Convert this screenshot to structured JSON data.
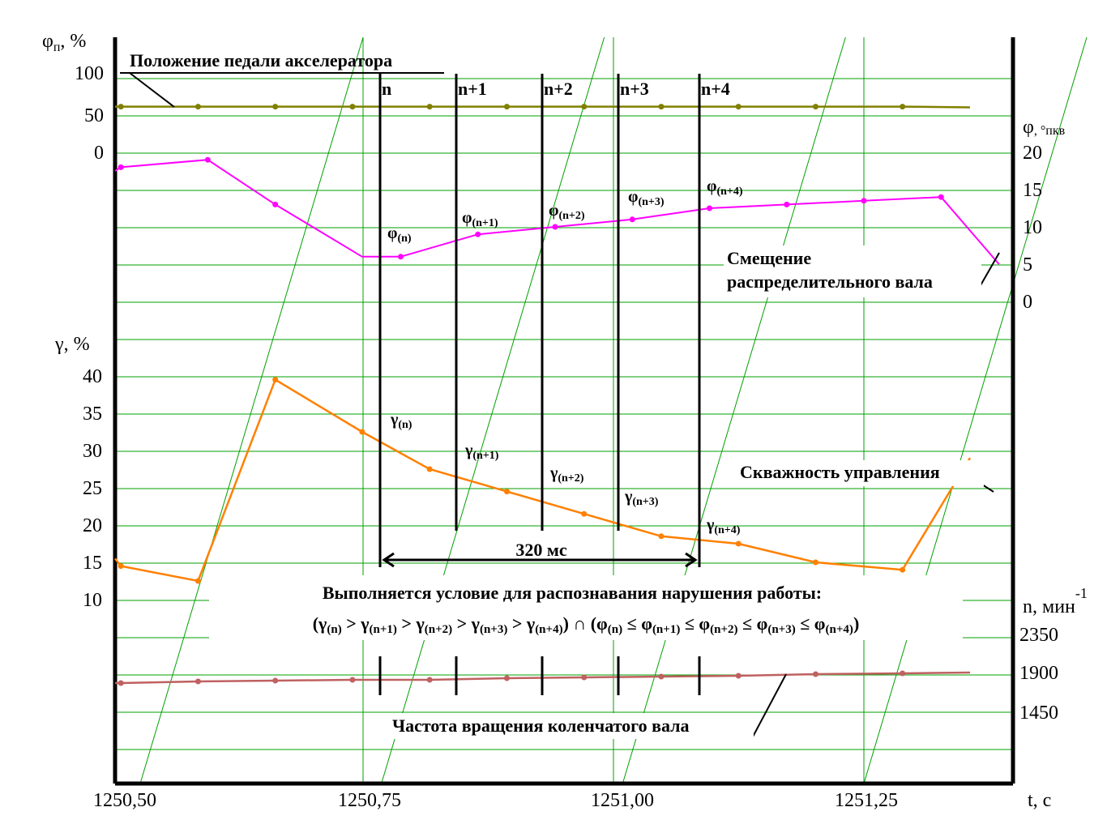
{
  "chart_data": {
    "type": "line",
    "title": "",
    "x": {
      "label": "t, с",
      "range": [
        1250.45,
        1251.4
      ],
      "ticks": [
        1250.5,
        1250.75,
        1251.0,
        1251.25
      ],
      "tick_labels": [
        "1250,50",
        "1250,75",
        "1251,00",
        "1251,25"
      ],
      "grid": [
        1250.5,
        1250.75,
        1251.0,
        1251.25
      ]
    },
    "panels": {
      "pedal": {
        "axis_label_main": "φ",
        "axis_label_sub": "п",
        "axis_label_tail": ", %",
        "ticks": [
          0,
          50,
          100
        ],
        "tick_labels": [
          "0",
          "50",
          "100"
        ]
      },
      "cam": {
        "axis_label_main": "φ",
        "axis_label_unit": ", °пкв",
        "ticks": [
          0,
          5,
          10,
          15,
          20
        ],
        "tick_labels": [
          "0",
          "5",
          "10",
          "15",
          "20"
        ]
      },
      "duty": {
        "axis_label": "γ, %",
        "ticks": [
          10,
          15,
          20,
          25,
          30,
          35,
          40
        ],
        "tick_labels": [
          "10",
          "15",
          "20",
          "25",
          "30",
          "35",
          "40"
        ]
      },
      "rpm": {
        "axis_label": "n, мин",
        "axis_label_sup": "-1",
        "ticks": [
          1450,
          1900,
          2350
        ],
        "tick_labels": [
          "1450",
          "1900",
          "2350"
        ]
      }
    },
    "series": [
      {
        "name": "Положение педали акселератора",
        "color": "#808000",
        "panel": "pedal",
        "x": [
          1250.45,
          1250.48,
          1250.56,
          1250.64,
          1250.72,
          1250.8,
          1250.88,
          1250.96,
          1251.04,
          1251.12,
          1251.2,
          1251.29,
          1251.36
        ],
        "y": [
          60,
          60,
          60,
          60,
          60,
          60,
          60,
          60,
          60,
          60,
          60,
          60,
          59
        ],
        "markers": [
          1,
          2,
          3,
          4,
          5,
          6,
          7,
          8,
          9,
          10,
          11
        ]
      },
      {
        "name": "Смещение распределительного вала",
        "color": "#ff00ff",
        "panel": "cam",
        "x": [
          1250.45,
          1250.48,
          1250.57,
          1250.64,
          1250.73,
          1250.77,
          1250.85,
          1250.93,
          1251.01,
          1251.09,
          1251.17,
          1251.25,
          1251.33,
          1251.39
        ],
        "y": [
          17.5,
          18,
          19,
          13,
          6,
          6,
          9,
          10,
          11,
          12.5,
          13,
          13.5,
          14,
          5
        ],
        "markers": [
          1,
          2,
          3,
          5,
          6,
          7,
          8,
          9,
          10,
          11,
          12
        ]
      },
      {
        "name": "Скважность управления",
        "color": "#ff8000",
        "panel": "duty",
        "x": [
          1250.45,
          1250.48,
          1250.56,
          1250.64,
          1250.73,
          1250.8,
          1250.88,
          1250.96,
          1251.04,
          1251.12,
          1251.2,
          1251.29,
          1251.36
        ],
        "y": [
          15.5,
          14.5,
          12.5,
          39.5,
          32.5,
          27.5,
          24.5,
          21.5,
          18.5,
          17.5,
          15,
          14,
          29
        ],
        "markers": [
          1,
          2,
          3,
          4,
          5,
          6,
          7,
          8,
          9,
          10,
          11
        ]
      },
      {
        "name": "Частота вращения коленчатого вала",
        "color": "#c06060",
        "panel": "rpm",
        "x": [
          1250.45,
          1250.48,
          1250.56,
          1250.64,
          1250.72,
          1250.8,
          1250.88,
          1250.96,
          1251.04,
          1251.12,
          1251.2,
          1251.29,
          1251.36
        ],
        "y": [
          1770,
          1770,
          1790,
          1800,
          1810,
          1810,
          1830,
          1840,
          1850,
          1860,
          1880,
          1890,
          1900
        ],
        "markers": [
          1,
          2,
          3,
          4,
          5,
          6,
          7,
          8,
          9,
          10,
          11
        ]
      }
    ],
    "cycle_markers": {
      "labels": [
        "n",
        "n+1",
        "n+2",
        "n+3",
        "n+4"
      ],
      "x": [
        1250.77,
        1250.85,
        1250.93,
        1251.01,
        1251.09
      ]
    },
    "annotations": {
      "phi_labels": [
        {
          "base": "φ",
          "sub": "(n)"
        },
        {
          "base": "φ",
          "sub": "(n+1)"
        },
        {
          "base": "φ",
          "sub": "(n+2)"
        },
        {
          "base": "φ",
          "sub": "(n+3)"
        },
        {
          "base": "φ",
          "sub": "(n+4)"
        }
      ],
      "gamma_labels": [
        {
          "base": "γ",
          "sub": "(n)"
        },
        {
          "base": "γ",
          "sub": "(n+1)"
        },
        {
          "base": "γ",
          "sub": "(n+2)"
        },
        {
          "base": "γ",
          "sub": "(n+3)"
        },
        {
          "base": "γ",
          "sub": "(n+4)"
        }
      ],
      "interval_label": "320 мс",
      "condition_title": "Выполняется условие для распознавания нарушения работы:",
      "condition_parts": [
        {
          "t": "(γ",
          "s": false
        },
        {
          "t": "(n)",
          "s": true
        },
        {
          "t": " > γ",
          "s": false
        },
        {
          "t": "(n+1)",
          "s": true
        },
        {
          "t": " > γ",
          "s": false
        },
        {
          "t": "(n+2)",
          "s": true
        },
        {
          "t": " > γ",
          "s": false
        },
        {
          "t": "(n+3)",
          "s": true
        },
        {
          "t": " > γ",
          "s": false
        },
        {
          "t": "(n+4)",
          "s": true
        },
        {
          "t": ") ∩ (φ",
          "s": false
        },
        {
          "t": "(n)",
          "s": true
        },
        {
          "t": " ≤ φ",
          "s": false
        },
        {
          "t": "(n+1)",
          "s": true
        },
        {
          "t": " ≤ φ",
          "s": false
        },
        {
          "t": "(n+2)",
          "s": true
        },
        {
          "t": " ≤ φ",
          "s": false
        },
        {
          "t": "(n+3)",
          "s": true
        },
        {
          "t": " ≤ φ",
          "s": false
        },
        {
          "t": "(n+4)",
          "s": true
        },
        {
          "t": ")",
          "s": false
        }
      ],
      "cam_label_line1": "Смещение",
      "cam_label_line2": "распределительного вала"
    }
  }
}
